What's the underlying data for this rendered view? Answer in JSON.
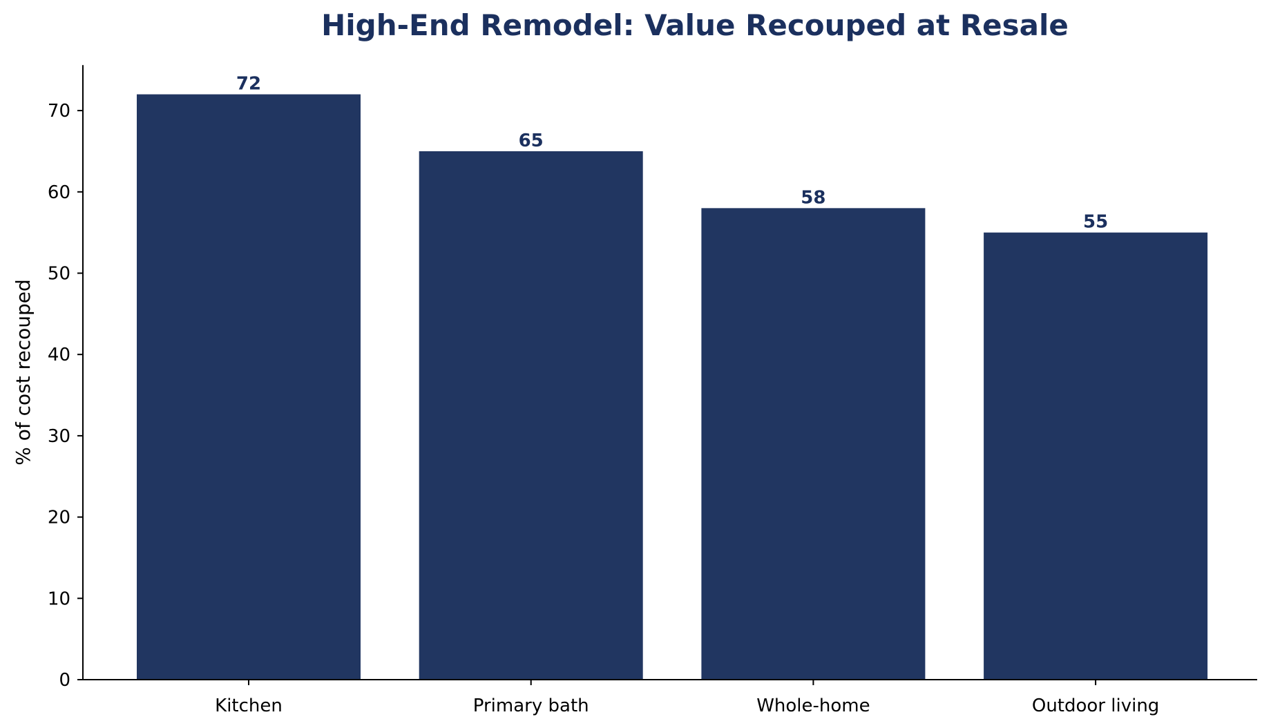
{
  "chart_data": {
    "type": "bar",
    "title": "High-End Remodel: Value Recouped at Resale",
    "xlabel": "",
    "ylabel": "% of cost recouped",
    "categories": [
      "Kitchen",
      "Primary bath",
      "Whole-home",
      "Outdoor living"
    ],
    "values": [
      72,
      65,
      58,
      55
    ],
    "data_labels": [
      "72",
      "65",
      "58",
      "55"
    ],
    "ylim": [
      0,
      75.6
    ],
    "yticks": [
      0,
      10,
      20,
      30,
      40,
      50,
      60,
      70
    ],
    "ytick_labels": [
      "0",
      "10",
      "20",
      "30",
      "40",
      "50",
      "60",
      "70"
    ],
    "grid": false,
    "legend": "none",
    "colors": {
      "bar": "#213661",
      "title": "#1b305e",
      "data_label": "#1b305e",
      "axis": "#000000"
    }
  }
}
